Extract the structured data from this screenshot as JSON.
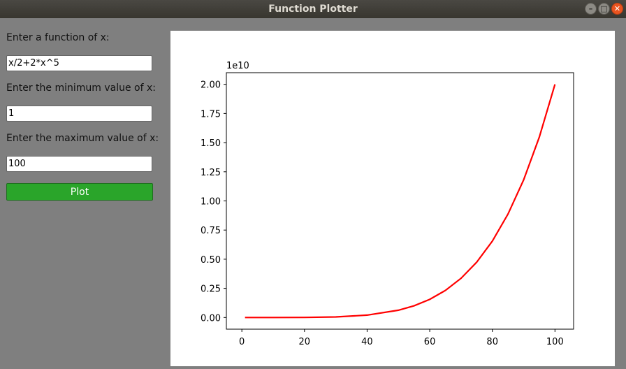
{
  "window": {
    "title": "Function Plotter",
    "controls": {
      "minimize": "–",
      "maximize": "□",
      "close": "✕"
    }
  },
  "form": {
    "function_label": "Enter a function of x:",
    "function_value": "x/2+2*x^5",
    "min_label": "Enter the minimum value of x:",
    "min_value": "1",
    "max_label": "Enter the maximum value of x:",
    "max_value": "100",
    "plot_button": "Plot"
  },
  "colors": {
    "plot_button": "#2aa52a",
    "line": "#ff0000",
    "background": "#7f7f7f"
  },
  "chart_data": {
    "type": "line",
    "title": "",
    "xlabel": "",
    "ylabel": "",
    "offset_label": "1e10",
    "x_ticks": [
      0,
      20,
      40,
      60,
      80,
      100
    ],
    "x_tick_labels": [
      "0",
      "20",
      "40",
      "60",
      "80",
      "100"
    ],
    "y_ticks": [
      0,
      0.25,
      0.5,
      0.75,
      1.0,
      1.25,
      1.5,
      1.75,
      2.0
    ],
    "y_tick_labels": [
      "0.00",
      "0.25",
      "0.50",
      "0.75",
      "1.00",
      "1.25",
      "1.50",
      "1.75",
      "2.00"
    ],
    "xlim": [
      -4.95,
      105.95
    ],
    "ylim": [
      -0.1,
      2.1
    ],
    "grid": false,
    "series": [
      {
        "color": "#ff0000",
        "x": [
          1,
          10,
          20,
          30,
          40,
          50,
          55,
          60,
          65,
          70,
          75,
          80,
          85,
          90,
          95,
          100
        ],
        "y": [
          0,
          2e-05,
          0.00064,
          0.00486,
          0.02048,
          0.0625,
          0.1006,
          0.15552,
          0.23206,
          0.33614,
          0.47461,
          0.65536,
          0.88741,
          1.18098,
          1.5476,
          2.0
        ]
      }
    ]
  }
}
